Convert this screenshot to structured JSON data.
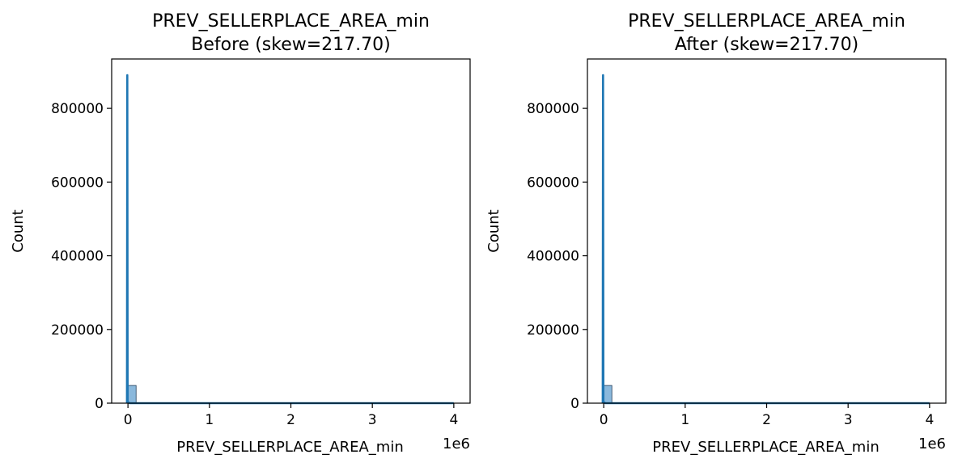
{
  "colors": {
    "bar_fill": "#8ab8dc",
    "bar_edge": "#1f3b57",
    "kde_line": "#1f77b4",
    "axes": "#000000"
  },
  "chart_data": [
    {
      "type": "bar",
      "title_line1": "PREV_SELLERPLACE_AREA_min",
      "title_line2": "Before (skew=217.70)",
      "xlabel": "PREV_SELLERPLACE_AREA_min",
      "ylabel": "Count",
      "x_offset_label": "1e6",
      "x_scale": 1000000,
      "xlim": [
        -200000,
        4200000
      ],
      "ylim": [
        0,
        934000
      ],
      "x_ticks": [
        0,
        1000000,
        2000000,
        3000000,
        4000000
      ],
      "x_tick_labels": [
        "0",
        "1",
        "2",
        "3",
        "4"
      ],
      "y_ticks": [
        0,
        200000,
        400000,
        600000,
        800000
      ],
      "y_tick_labels": [
        "0",
        "200000",
        "400000",
        "600000",
        "800000"
      ],
      "bins": [
        {
          "x0": 0,
          "x1": 100000,
          "count": 48000
        }
      ],
      "kde": [
        [
          -12000,
          0
        ],
        [
          -8000,
          890000
        ],
        [
          -4000,
          4000
        ],
        [
          20000,
          0
        ],
        [
          4000000,
          0
        ]
      ],
      "grid": false,
      "legend": "none"
    },
    {
      "type": "bar",
      "title_line1": "PREV_SELLERPLACE_AREA_min",
      "title_line2": "After (skew=217.70)",
      "xlabel": "PREV_SELLERPLACE_AREA_min",
      "ylabel": "Count",
      "x_offset_label": "1e6",
      "x_scale": 1000000,
      "xlim": [
        -200000,
        4200000
      ],
      "ylim": [
        0,
        934000
      ],
      "x_ticks": [
        0,
        1000000,
        2000000,
        3000000,
        4000000
      ],
      "x_tick_labels": [
        "0",
        "1",
        "2",
        "3",
        "4"
      ],
      "y_ticks": [
        0,
        200000,
        400000,
        600000,
        800000
      ],
      "y_tick_labels": [
        "0",
        "200000",
        "400000",
        "600000",
        "800000"
      ],
      "bins": [
        {
          "x0": 0,
          "x1": 100000,
          "count": 48000
        }
      ],
      "kde": [
        [
          -12000,
          0
        ],
        [
          -8000,
          890000
        ],
        [
          -4000,
          4000
        ],
        [
          20000,
          0
        ],
        [
          4000000,
          0
        ]
      ],
      "grid": false,
      "legend": "none"
    }
  ]
}
